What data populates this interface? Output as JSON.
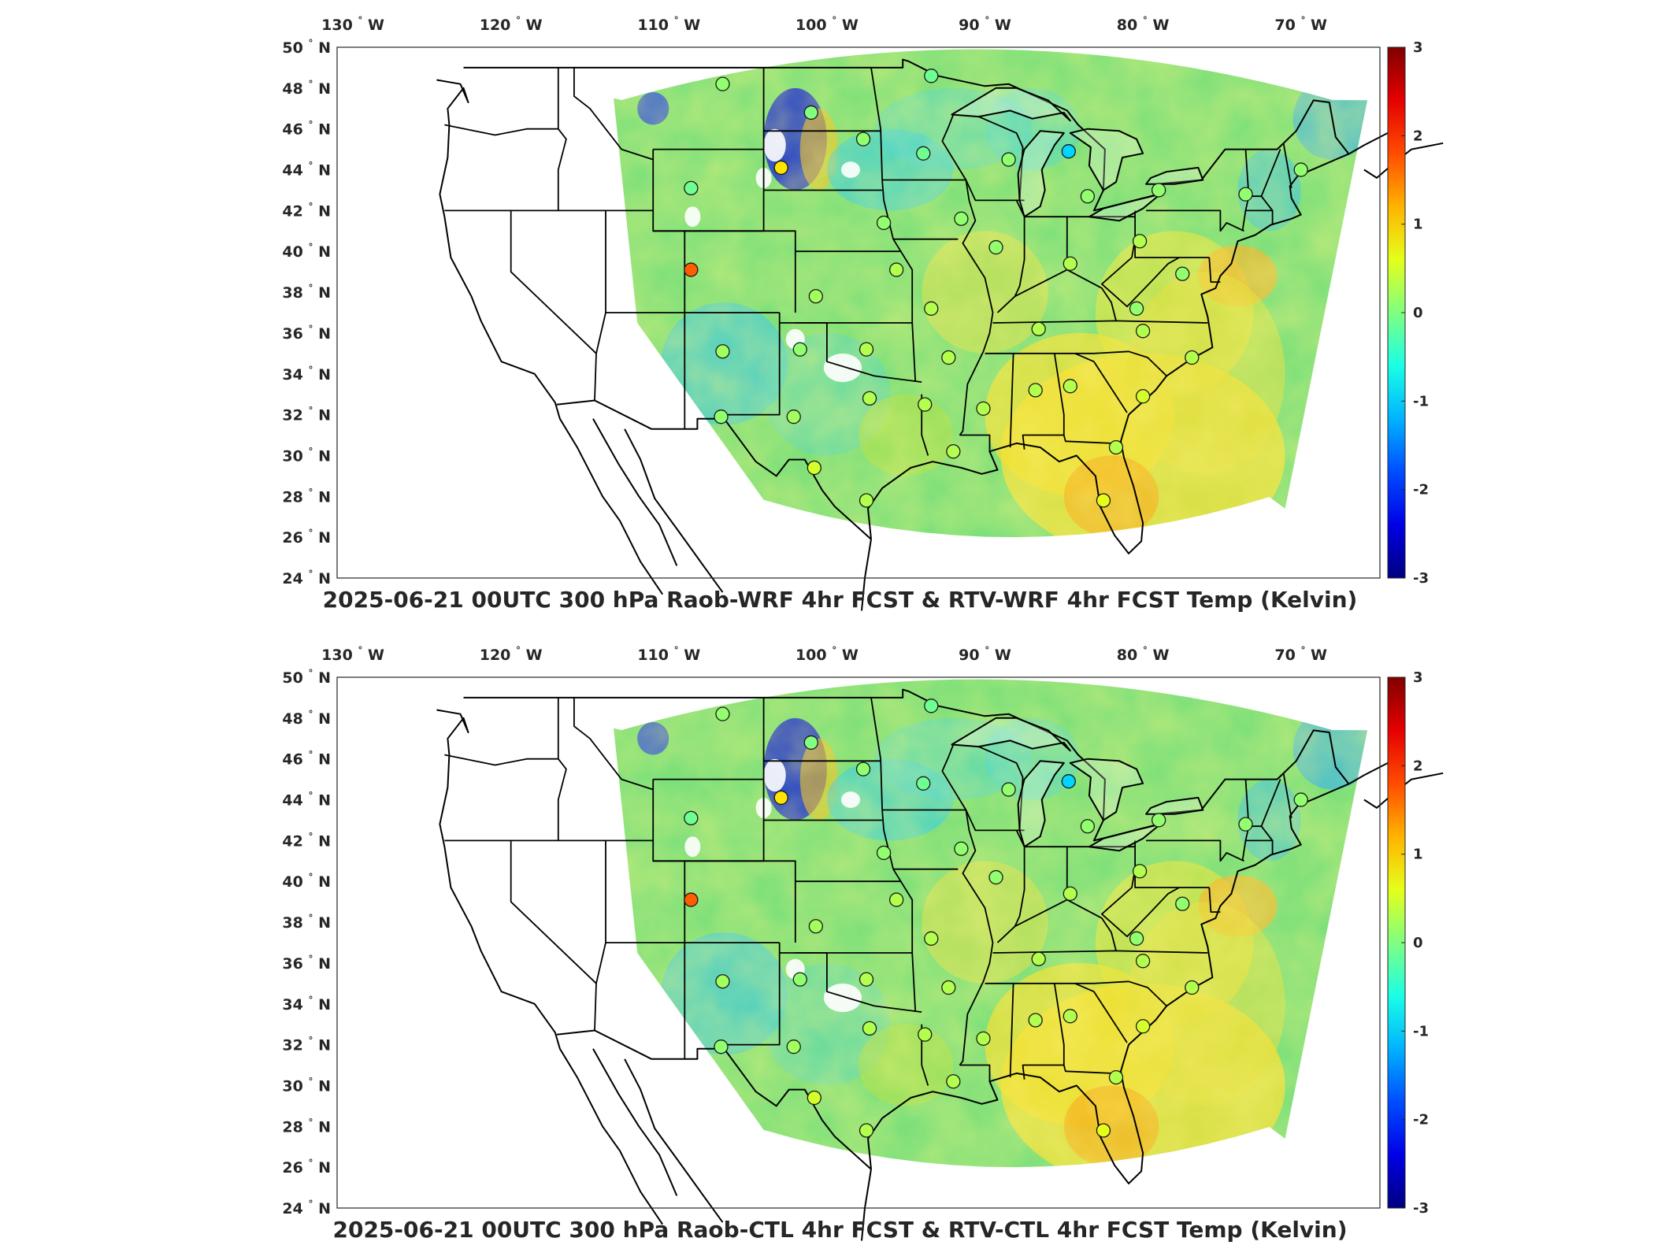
{
  "panels": [
    {
      "title": "2025-06-21 00UTC 300 hPa Raob-WRF 4hr FCST & RTV-WRF 4hr FCST Temp (Kelvin)",
      "stations": [
        {
          "lon": -106.6,
          "lat": 48.2,
          "v": 0.1
        },
        {
          "lon": -93.4,
          "lat": 48.6,
          "v": -0.1
        },
        {
          "lon": -102.9,
          "lat": 44.1,
          "v": 0.9
        },
        {
          "lon": -101.0,
          "lat": 46.8,
          "v": 0.0
        },
        {
          "lon": -97.7,
          "lat": 45.5,
          "v": 0.1
        },
        {
          "lon": -93.9,
          "lat": 44.8,
          "v": -0.1
        },
        {
          "lon": -108.6,
          "lat": 43.1,
          "v": -0.1
        },
        {
          "lon": -108.6,
          "lat": 39.1,
          "v": 1.7
        },
        {
          "lon": -88.5,
          "lat": 44.5,
          "v": 0.1
        },
        {
          "lon": -84.7,
          "lat": 44.9,
          "v": -1.0
        },
        {
          "lon": -83.5,
          "lat": 42.7,
          "v": 0.1
        },
        {
          "lon": -79.0,
          "lat": 43.0,
          "v": 0.1
        },
        {
          "lon": -73.5,
          "lat": 42.8,
          "v": 0.1
        },
        {
          "lon": -70.0,
          "lat": 44.0,
          "v": 0.1
        },
        {
          "lon": -91.5,
          "lat": 41.6,
          "v": 0.1
        },
        {
          "lon": -96.4,
          "lat": 41.4,
          "v": 0.1
        },
        {
          "lon": -89.3,
          "lat": 40.2,
          "v": 0.1
        },
        {
          "lon": -80.2,
          "lat": 40.5,
          "v": 0.3
        },
        {
          "lon": -84.6,
          "lat": 39.4,
          "v": 0.3
        },
        {
          "lon": -95.6,
          "lat": 39.1,
          "v": 0.3
        },
        {
          "lon": -100.7,
          "lat": 37.8,
          "v": 0.2
        },
        {
          "lon": -77.5,
          "lat": 38.9,
          "v": 0.1
        },
        {
          "lon": -93.4,
          "lat": 37.2,
          "v": 0.3
        },
        {
          "lon": -80.4,
          "lat": 37.2,
          "v": 0.1
        },
        {
          "lon": -86.6,
          "lat": 36.2,
          "v": 0.3
        },
        {
          "lon": -80.0,
          "lat": 36.1,
          "v": 0.3
        },
        {
          "lon": -106.6,
          "lat": 35.1,
          "v": 0.2
        },
        {
          "lon": -101.7,
          "lat": 35.2,
          "v": 0.1
        },
        {
          "lon": -97.5,
          "lat": 35.2,
          "v": 0.3
        },
        {
          "lon": -92.3,
          "lat": 34.8,
          "v": 0.3
        },
        {
          "lon": -76.9,
          "lat": 34.8,
          "v": 0.3
        },
        {
          "lon": -84.6,
          "lat": 33.4,
          "v": 0.3
        },
        {
          "lon": -86.8,
          "lat": 33.2,
          "v": 0.3
        },
        {
          "lon": -97.3,
          "lat": 32.8,
          "v": 0.3
        },
        {
          "lon": -93.8,
          "lat": 32.5,
          "v": 0.3
        },
        {
          "lon": -90.1,
          "lat": 32.3,
          "v": 0.3
        },
        {
          "lon": -80.0,
          "lat": 32.9,
          "v": 0.5
        },
        {
          "lon": -106.7,
          "lat": 31.9,
          "v": 0.1
        },
        {
          "lon": -102.1,
          "lat": 31.9,
          "v": 0.2
        },
        {
          "lon": -92.0,
          "lat": 30.2,
          "v": 0.3
        },
        {
          "lon": -81.7,
          "lat": 30.4,
          "v": 0.3
        },
        {
          "lon": -100.8,
          "lat": 29.4,
          "v": 0.5
        },
        {
          "lon": -97.5,
          "lat": 27.8,
          "v": 0.3
        },
        {
          "lon": -82.5,
          "lat": 27.8,
          "v": 0.6
        }
      ]
    },
    {
      "title": "2025-06-21 00UTC 300 hPa Raob-CTL 4hr FCST & RTV-CTL 4hr FCST Temp (Kelvin)",
      "stations": [
        {
          "lon": -106.6,
          "lat": 48.2,
          "v": 0.1
        },
        {
          "lon": -93.4,
          "lat": 48.6,
          "v": -0.1
        },
        {
          "lon": -102.9,
          "lat": 44.1,
          "v": 0.9
        },
        {
          "lon": -101.0,
          "lat": 46.8,
          "v": 0.0
        },
        {
          "lon": -97.7,
          "lat": 45.5,
          "v": 0.1
        },
        {
          "lon": -93.9,
          "lat": 44.8,
          "v": -0.1
        },
        {
          "lon": -108.6,
          "lat": 43.1,
          "v": -0.1
        },
        {
          "lon": -108.6,
          "lat": 39.1,
          "v": 1.7
        },
        {
          "lon": -88.5,
          "lat": 44.5,
          "v": 0.1
        },
        {
          "lon": -84.7,
          "lat": 44.9,
          "v": -1.0
        },
        {
          "lon": -83.5,
          "lat": 42.7,
          "v": 0.1
        },
        {
          "lon": -79.0,
          "lat": 43.0,
          "v": 0.1
        },
        {
          "lon": -73.5,
          "lat": 42.8,
          "v": 0.1
        },
        {
          "lon": -70.0,
          "lat": 44.0,
          "v": 0.1
        },
        {
          "lon": -91.5,
          "lat": 41.6,
          "v": 0.1
        },
        {
          "lon": -96.4,
          "lat": 41.4,
          "v": 0.1
        },
        {
          "lon": -89.3,
          "lat": 40.2,
          "v": 0.1
        },
        {
          "lon": -80.2,
          "lat": 40.5,
          "v": 0.3
        },
        {
          "lon": -84.6,
          "lat": 39.4,
          "v": 0.3
        },
        {
          "lon": -95.6,
          "lat": 39.1,
          "v": 0.3
        },
        {
          "lon": -100.7,
          "lat": 37.8,
          "v": 0.2
        },
        {
          "lon": -77.5,
          "lat": 38.9,
          "v": 0.1
        },
        {
          "lon": -93.4,
          "lat": 37.2,
          "v": 0.3
        },
        {
          "lon": -80.4,
          "lat": 37.2,
          "v": 0.1
        },
        {
          "lon": -86.6,
          "lat": 36.2,
          "v": 0.3
        },
        {
          "lon": -80.0,
          "lat": 36.1,
          "v": 0.3
        },
        {
          "lon": -106.6,
          "lat": 35.1,
          "v": 0.2
        },
        {
          "lon": -101.7,
          "lat": 35.2,
          "v": 0.1
        },
        {
          "lon": -97.5,
          "lat": 35.2,
          "v": 0.3
        },
        {
          "lon": -92.3,
          "lat": 34.8,
          "v": 0.3
        },
        {
          "lon": -76.9,
          "lat": 34.8,
          "v": 0.3
        },
        {
          "lon": -84.6,
          "lat": 33.4,
          "v": 0.3
        },
        {
          "lon": -86.8,
          "lat": 33.2,
          "v": 0.3
        },
        {
          "lon": -97.3,
          "lat": 32.8,
          "v": 0.3
        },
        {
          "lon": -93.8,
          "lat": 32.5,
          "v": 0.3
        },
        {
          "lon": -90.1,
          "lat": 32.3,
          "v": 0.3
        },
        {
          "lon": -80.0,
          "lat": 32.9,
          "v": 0.5
        },
        {
          "lon": -106.7,
          "lat": 31.9,
          "v": 0.1
        },
        {
          "lon": -102.1,
          "lat": 31.9,
          "v": 0.2
        },
        {
          "lon": -92.0,
          "lat": 30.2,
          "v": 0.3
        },
        {
          "lon": -81.7,
          "lat": 30.4,
          "v": 0.3
        },
        {
          "lon": -100.8,
          "lat": 29.4,
          "v": 0.5
        },
        {
          "lon": -97.5,
          "lat": 27.8,
          "v": 0.3
        },
        {
          "lon": -82.5,
          "lat": 27.8,
          "v": 0.6
        }
      ]
    }
  ],
  "lon_ticks": [
    {
      "value": -130,
      "label": "130",
      "hemi": "W"
    },
    {
      "value": -120,
      "label": "120",
      "hemi": "W"
    },
    {
      "value": -110,
      "label": "110",
      "hemi": "W"
    },
    {
      "value": -100,
      "label": "100",
      "hemi": "W"
    },
    {
      "value": -90,
      "label": "90",
      "hemi": "W"
    },
    {
      "value": -80,
      "label": "80",
      "hemi": "W"
    },
    {
      "value": -70,
      "label": "70",
      "hemi": "W"
    }
  ],
  "lat_ticks": [
    {
      "value": 50,
      "label": "50",
      "hemi": "N"
    },
    {
      "value": 48,
      "label": "48",
      "hemi": "N"
    },
    {
      "value": 46,
      "label": "46",
      "hemi": "N"
    },
    {
      "value": 44,
      "label": "44",
      "hemi": "N"
    },
    {
      "value": 42,
      "label": "42",
      "hemi": "N"
    },
    {
      "value": 40,
      "label": "40",
      "hemi": "N"
    },
    {
      "value": 38,
      "label": "38",
      "hemi": "N"
    },
    {
      "value": 36,
      "label": "36",
      "hemi": "N"
    },
    {
      "value": 34,
      "label": "34",
      "hemi": "N"
    },
    {
      "value": 32,
      "label": "32",
      "hemi": "N"
    },
    {
      "value": 30,
      "label": "30",
      "hemi": "N"
    },
    {
      "value": 28,
      "label": "28",
      "hemi": "N"
    },
    {
      "value": 26,
      "label": "26",
      "hemi": "N"
    },
    {
      "value": 24,
      "label": "24",
      "hemi": "N"
    }
  ],
  "degree_symbol": "°",
  "colorbar": {
    "min": -3,
    "max": 3,
    "ticks": [
      {
        "value": 3,
        "label": "3"
      },
      {
        "value": 2,
        "label": "2"
      },
      {
        "value": 1,
        "label": "1"
      },
      {
        "value": 0,
        "label": "0"
      },
      {
        "value": -1,
        "label": "-1"
      },
      {
        "value": -2,
        "label": "-2"
      },
      {
        "value": -3,
        "label": "-3"
      }
    ],
    "colormap": "jet"
  },
  "map_extent": {
    "lon": [
      -131,
      -65
    ],
    "lat": [
      24,
      50
    ]
  }
}
